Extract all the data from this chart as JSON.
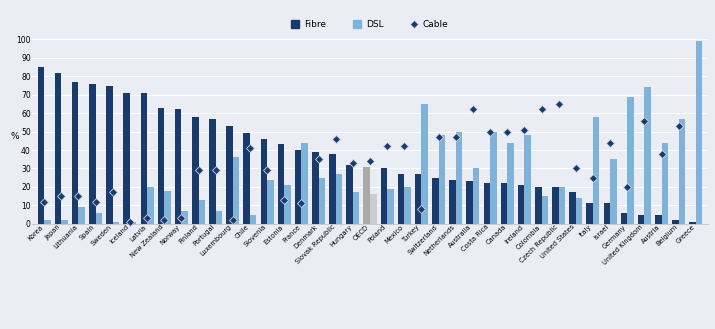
{
  "categories": [
    "Korea",
    "Japan",
    "Lithuania",
    "Spain",
    "Sweden",
    "Iceland",
    "Latvia",
    "New Zealand",
    "Norway",
    "Finland",
    "Portugal",
    "Luxembourg",
    "Chile",
    "Slovenia",
    "Estonia",
    "France",
    "Denmark",
    "Slovak Republic",
    "Hungary",
    "OECD",
    "Poland",
    "Mexico",
    "Turkey",
    "Switzerland",
    "Netherlands",
    "Australia",
    "Costa Rica",
    "Canada",
    "Ireland",
    "Colombia",
    "Czech Republic",
    "United States",
    "Italy",
    "Israel",
    "Germany",
    "United Kingdom",
    "Austria",
    "Belgium",
    "Greece"
  ],
  "fibre": [
    85,
    82,
    77,
    76,
    75,
    71,
    71,
    63,
    62,
    58,
    57,
    53,
    49,
    46,
    43,
    40,
    39,
    38,
    32,
    31,
    30,
    27,
    27,
    25,
    24,
    23,
    22,
    22,
    21,
    20,
    20,
    17,
    11,
    11,
    6,
    5,
    5,
    2,
    1
  ],
  "dsl": [
    2,
    2,
    9,
    6,
    1,
    1,
    20,
    18,
    7,
    13,
    7,
    36,
    5,
    24,
    21,
    44,
    25,
    27,
    17,
    16,
    19,
    20,
    65,
    48,
    50,
    30,
    50,
    44,
    48,
    15,
    20,
    14,
    58,
    35,
    69,
    74,
    44,
    57,
    99
  ],
  "cable": [
    12,
    15,
    15,
    12,
    17,
    1,
    3,
    2,
    3,
    29,
    29,
    2,
    41,
    29,
    13,
    11,
    35,
    46,
    33,
    34,
    42,
    42,
    8,
    47,
    47,
    62,
    50,
    50,
    51,
    62,
    65,
    30,
    25,
    44,
    20,
    56,
    38,
    53,
    0
  ],
  "fibre_color": "#1a3a6b",
  "dsl_color": "#7fb3d9",
  "cable_color": "#1a3a6b",
  "oecd_fibre_color": "#aaaaaa",
  "oecd_dsl_color": "#cccccc",
  "plot_bg": "#eaeef4",
  "fig_bg": "#eaeef4",
  "ylabel": "%",
  "ylim": [
    0,
    100
  ],
  "yticks": [
    0,
    10,
    20,
    30,
    40,
    50,
    60,
    70,
    80,
    90,
    100
  ],
  "bar_width": 0.38,
  "figw": 7.15,
  "figh": 3.29,
  "dpi": 100
}
